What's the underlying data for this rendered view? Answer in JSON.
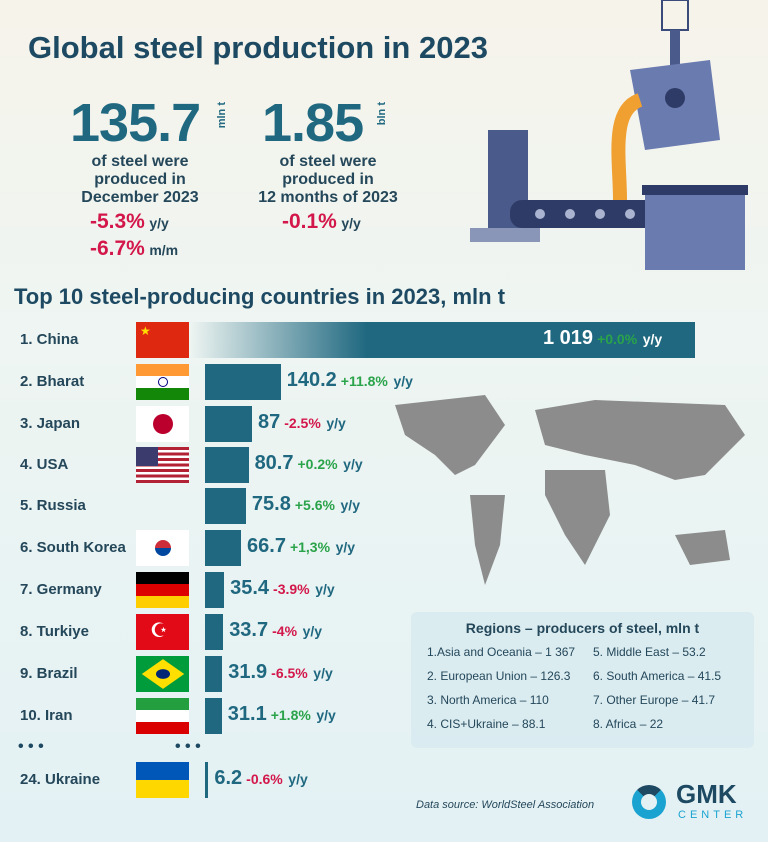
{
  "header": {
    "title": "Global steel production in 2023"
  },
  "stat_month": {
    "value": "135.7",
    "unit": "mln t",
    "desc": [
      "of steel were",
      "produced in",
      "December 2023"
    ],
    "changes": [
      {
        "value": "-5.3%",
        "label": "y/y"
      },
      {
        "value": "-6.7%",
        "label": "m/m"
      }
    ]
  },
  "stat_year": {
    "value": "1.85",
    "unit": "bln t",
    "desc": [
      "of steel were",
      "produced in",
      "12 months of 2023"
    ],
    "changes": [
      {
        "value": "-0.1%",
        "label": "y/y"
      }
    ]
  },
  "colors": {
    "bar": "#1f6880",
    "positive": "#2aa34a",
    "negative": "#d3174a"
  },
  "chart_data": {
    "type": "bar",
    "title": "Top 10 steel-producing countries in 2023, mln t",
    "categories": [
      "1. China",
      "2. Bharat",
      "3. Japan",
      "4. USA",
      "5. Russia",
      "6. South Korea",
      "7. Germany",
      "8. Turkiye",
      "9. Brazil",
      "10.  Iran",
      "24.  Ukraine"
    ],
    "values": [
      1019,
      140.2,
      87,
      80.7,
      75.8,
      66.7,
      35.4,
      33.7,
      31.9,
      31.1,
      6.2
    ],
    "value_labels": [
      "1 019",
      "140.2",
      "87",
      "80.7",
      "75.8",
      "66.7",
      "35.4",
      "33.7",
      "31.9",
      "31.1",
      "6.2"
    ],
    "changes": [
      "+0.0%",
      "+11.8%",
      "-2.5%",
      "+0.2%",
      "+5.6%",
      "+1,3%",
      "-3.9%",
      "-4%",
      "-6.5%",
      "+1.8%",
      "-0.6%"
    ],
    "change_label": "y/y",
    "ellipsis": "• • •"
  },
  "regions": {
    "title": "Regions  – producers of steel, mln t",
    "items": [
      "1.Asia and Oceania – 1 367",
      "2. European Union – 126.3",
      "3. North America – 110",
      "4. CIS+Ukraine – 88.1",
      "5. Middle East – 53.2",
      "6. South America – 41.5",
      "7. Other Europe – 41.7",
      "8. Africa – 22"
    ]
  },
  "footer": {
    "source": "Data source: WorldSteel Association",
    "logo_top": "GMK",
    "logo_bottom": "CENTER"
  }
}
